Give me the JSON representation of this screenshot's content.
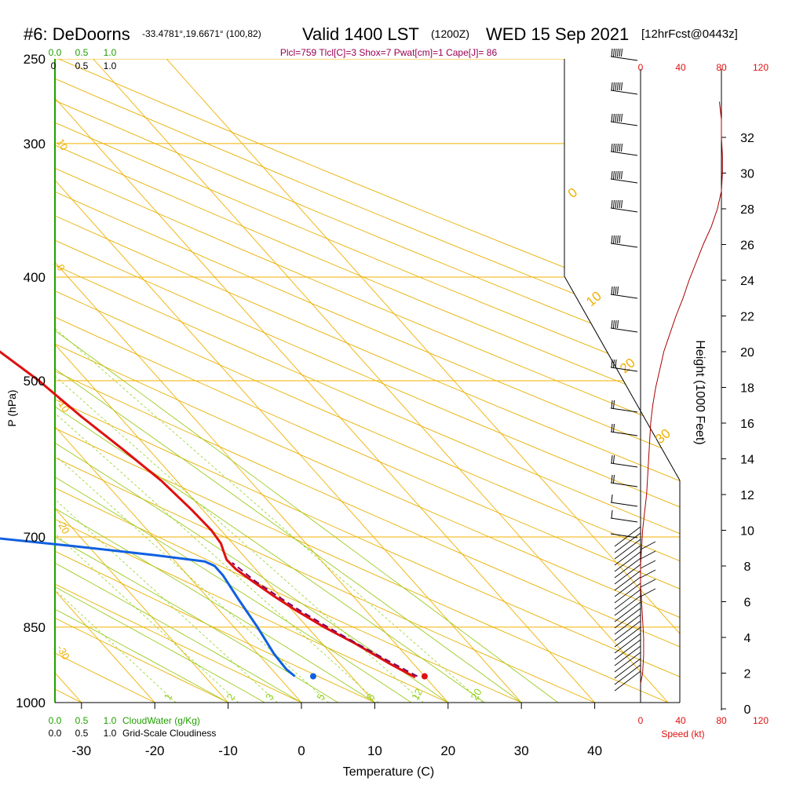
{
  "header": {
    "station": "#6: DeDoorns",
    "coords": "-33.4781°,19.6671° (100,82)",
    "valid": "Valid 1400 LST",
    "utc": "(1200Z)",
    "date": "WED 15 Sep 2021",
    "forecast": "[12hrFcst@0443z]",
    "indices": "Plcl=759 Tlcl[C]=3 Shox=7 Pwat[cm]=1 Cape[J]= 86"
  },
  "colors": {
    "isotherm": "#f0b000",
    "dryAdiabat": "#e8b000",
    "mixingRatio": "#8ed21a",
    "moistAdiabat": "#9ccc20",
    "temperature": "#e01010",
    "dewpoint": "#1060e0",
    "parcel": "#800060",
    "green": "#20a000",
    "red": "#e01010",
    "purple": "#990055"
  },
  "chart_data": {
    "type": "line",
    "title": "#6: DeDoorns",
    "xlabel": "Temperature (C)",
    "ylabel": "P (hPa)",
    "y2label": "Height (1000 Feet)",
    "speed_label": "Speed (kt)",
    "cloudwater_label": "CloudWater (g/Kg)",
    "cloudiness_label": "Grid-Scale Cloudiness",
    "xlim": [
      -35,
      51
    ],
    "ylim_pressure": [
      1000,
      250
    ],
    "y_scale": "log",
    "temperature_ticks": [
      "-30",
      "-20",
      "-10",
      "0",
      "10",
      "20",
      "30",
      "40"
    ],
    "pressure_ticks": [
      "250",
      "300",
      "400",
      "500",
      "700",
      "850",
      "1000"
    ],
    "pressure_tick_values": [
      250,
      300,
      400,
      500,
      700,
      850,
      1000
    ],
    "height_ticks": [
      "0",
      "2",
      "4",
      "6",
      "8",
      "10",
      "12",
      "14",
      "16",
      "18",
      "20",
      "22",
      "24",
      "26",
      "28",
      "30",
      "32"
    ],
    "speed_ticks": [
      "0",
      "40",
      "80",
      "120"
    ],
    "cloud_ticks": [
      "0.0",
      "0.5",
      "1.0"
    ],
    "cloud_ticks_axis": [
      "0",
      "0.5",
      "1.0"
    ],
    "mixing_ratio_labels": [
      "1",
      "2",
      "3",
      "5",
      "8",
      "12",
      "20"
    ],
    "isotherm_labels": [
      "10",
      "0",
      "-10",
      "-20",
      "-30"
    ],
    "dry_adiabat_labels": [
      "0",
      "10",
      "20",
      "30"
    ],
    "grid": true,
    "series": [
      {
        "name": "Temperature",
        "points": [
          [
            18.6,
            947
          ],
          [
            16.8,
            920
          ],
          [
            14.5,
            880
          ],
          [
            12.3,
            850
          ],
          [
            10.5,
            820
          ],
          [
            9.2,
            795
          ],
          [
            8.1,
            770
          ],
          [
            7.3,
            750
          ],
          [
            7.2,
            735
          ],
          [
            7.8,
            722
          ],
          [
            8.4,
            710
          ],
          [
            8.7,
            690
          ],
          [
            8.5,
            660
          ],
          [
            7.9,
            620
          ],
          [
            6.5,
            580
          ],
          [
            4.8,
            540
          ],
          [
            3.4,
            500
          ],
          [
            1.0,
            460
          ],
          [
            -1.2,
            420
          ],
          [
            -3.2,
            380
          ],
          [
            -5.0,
            340
          ],
          [
            -6.5,
            310
          ],
          [
            -6.7,
            290
          ],
          [
            -6.0,
            270
          ],
          [
            -5.0,
            255
          ]
        ]
      },
      {
        "name": "Dewpoint",
        "points": [
          [
            2.3,
            945
          ],
          [
            2.0,
            930
          ],
          [
            2.2,
            900
          ],
          [
            3.2,
            850
          ],
          [
            4.0,
            800
          ],
          [
            4.8,
            760
          ],
          [
            4.8,
            745
          ],
          [
            4.0,
            738
          ],
          [
            -2.0,
            728
          ],
          [
            -12.0,
            714
          ],
          [
            -23.0,
            700
          ],
          [
            -24.5,
            680
          ],
          [
            -25.5,
            650
          ],
          [
            -25.7,
            620
          ],
          [
            -25.4,
            580
          ],
          [
            -26.0,
            540
          ],
          [
            -27.0,
            500
          ],
          [
            -28.0,
            450
          ],
          [
            -28.5,
            420
          ],
          [
            -28.0,
            390
          ],
          [
            -27.0,
            375
          ],
          [
            -24.0,
            350
          ],
          [
            -21.0,
            330
          ],
          [
            -19.5,
            310
          ],
          [
            -19.0,
            295
          ],
          [
            -19.7,
            280
          ],
          [
            -21.5,
            265
          ],
          [
            -23.5,
            255
          ]
        ]
      },
      {
        "name": "Parcel",
        "points": [
          [
            19.0,
            945
          ],
          [
            17.0,
            915
          ],
          [
            14.7,
            880
          ],
          [
            12.8,
            850
          ],
          [
            11.0,
            820
          ],
          [
            9.7,
            795
          ],
          [
            8.5,
            770
          ],
          [
            7.6,
            740
          ]
        ]
      }
    ],
    "surface_temperature": 20,
    "surface_dewpoint": 4.8,
    "surface_pressure": 945,
    "wind_speed_profile": [
      [
        0,
        1.4
      ],
      [
        2,
        2.0
      ],
      [
        3,
        3.0
      ],
      [
        3,
        4.0
      ],
      [
        2,
        5.0
      ],
      [
        1,
        6.0
      ],
      [
        0,
        7.0
      ],
      [
        0,
        8.0
      ],
      [
        1,
        9.0
      ],
      [
        2,
        10.0
      ],
      [
        4,
        11.0
      ],
      [
        6,
        12.0
      ],
      [
        7,
        13.0
      ],
      [
        8,
        14.0
      ],
      [
        9,
        15.0
      ],
      [
        10,
        16.0
      ],
      [
        12,
        17.0
      ],
      [
        15,
        18.0
      ],
      [
        19,
        19.0
      ],
      [
        23,
        20.0
      ],
      [
        29,
        21.0
      ],
      [
        35,
        22.0
      ],
      [
        42,
        23.0
      ],
      [
        48,
        24.0
      ],
      [
        55,
        25.0
      ],
      [
        62,
        26.0
      ],
      [
        70,
        27.0
      ],
      [
        76,
        28.0
      ],
      [
        80,
        29.0
      ],
      [
        81,
        30.0
      ],
      [
        81,
        31.0
      ],
      [
        80,
        32.0
      ],
      [
        80,
        33.0
      ],
      [
        78,
        34.0
      ]
    ]
  }
}
